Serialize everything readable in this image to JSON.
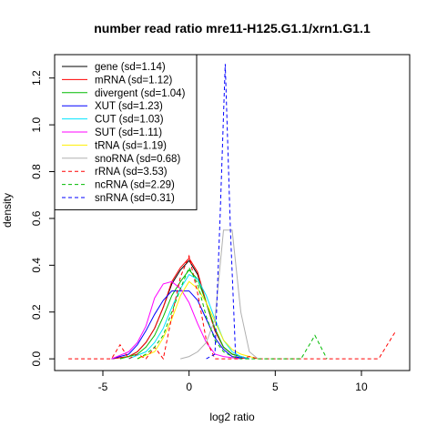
{
  "chart_data": {
    "type": "line",
    "title": "number read ratio mre11-H125.G1.1/xrn1.G1.1",
    "xlabel": "log2 ratio",
    "ylabel": "density",
    "xlim": [
      -7.8,
      12.8
    ],
    "ylim": [
      -0.05,
      1.3
    ],
    "xticks": [
      -5,
      0,
      5,
      10
    ],
    "yticks": [
      0.0,
      0.2,
      0.4,
      0.6,
      0.8,
      1.0,
      1.2
    ],
    "xtick_labels": [
      "-5",
      "0",
      "5",
      "10"
    ],
    "ytick_labels": [
      "0.0",
      "0.2",
      "0.4",
      "0.6",
      "0.8",
      "1.0",
      "1.2"
    ],
    "grid": false,
    "legend_position": "top-left",
    "series": [
      {
        "name": "gene (sd=1.14)",
        "color": "#000000",
        "dash": "solid",
        "x": [
          -4.5,
          -3.5,
          -3,
          -2.5,
          -2,
          -1.5,
          -1,
          -0.5,
          0,
          0.5,
          1,
          1.5,
          2,
          2.5,
          3,
          3.5
        ],
        "y": [
          0,
          0.01,
          0.03,
          0.07,
          0.13,
          0.22,
          0.32,
          0.38,
          0.42,
          0.36,
          0.24,
          0.12,
          0.05,
          0.02,
          0.01,
          0
        ]
      },
      {
        "name": "mRNA (sd=1.12)",
        "color": "#ff0000",
        "dash": "solid",
        "x": [
          -4.5,
          -3.5,
          -3,
          -2.5,
          -2,
          -1.5,
          -1,
          -0.5,
          0,
          0.5,
          1,
          1.5,
          2,
          2.5,
          3,
          3.5
        ],
        "y": [
          0,
          0.01,
          0.03,
          0.07,
          0.13,
          0.22,
          0.33,
          0.39,
          0.43,
          0.37,
          0.24,
          0.12,
          0.05,
          0.02,
          0.01,
          0
        ]
      },
      {
        "name": "divergent (sd=1.04)",
        "color": "#00bb00",
        "dash": "solid",
        "x": [
          -4,
          -3,
          -2.5,
          -2,
          -1.5,
          -1,
          -0.5,
          0,
          0.5,
          1,
          1.5,
          2,
          2.5,
          3,
          3.5
        ],
        "y": [
          0,
          0.02,
          0.05,
          0.1,
          0.18,
          0.27,
          0.33,
          0.38,
          0.34,
          0.24,
          0.13,
          0.05,
          0.02,
          0.01,
          0
        ]
      },
      {
        "name": "XUT (sd=1.23)",
        "color": "#0000ff",
        "dash": "solid",
        "x": [
          -4.5,
          -3.5,
          -3,
          -2.5,
          -2,
          -1.5,
          -1,
          0,
          0.5,
          1,
          1.5,
          2,
          2.5,
          3.5
        ],
        "y": [
          0,
          0.02,
          0.06,
          0.12,
          0.19,
          0.25,
          0.29,
          0.29,
          0.25,
          0.17,
          0.09,
          0.04,
          0.01,
          0
        ]
      },
      {
        "name": "CUT (sd=1.03)",
        "color": "#00e5ff",
        "dash": "solid",
        "x": [
          -3.5,
          -2.5,
          -2,
          -1.5,
          -1,
          -0.5,
          0,
          0.5,
          1,
          1.5,
          2,
          2.5,
          3,
          3.5
        ],
        "y": [
          0,
          0.03,
          0.07,
          0.13,
          0.22,
          0.3,
          0.36,
          0.34,
          0.27,
          0.17,
          0.08,
          0.03,
          0.01,
          0
        ]
      },
      {
        "name": "SUT (sd=1.11)",
        "color": "#ff00ff",
        "dash": "solid",
        "x": [
          -4.5,
          -3.5,
          -3,
          -2.5,
          -2,
          -1.5,
          -1,
          -0.5,
          0,
          0.5,
          1,
          1.5,
          2,
          3
        ],
        "y": [
          0,
          0.03,
          0.07,
          0.14,
          0.26,
          0.32,
          0.33,
          0.3,
          0.24,
          0.15,
          0.07,
          0.02,
          0.01,
          0
        ]
      },
      {
        "name": "tRNA (sd=1.19)",
        "color": "#ffee00",
        "dash": "solid",
        "x": [
          -3,
          -2,
          -1.5,
          -1,
          -0.5,
          0,
          0.5,
          1,
          1.5,
          2,
          2.5,
          3,
          4
        ],
        "y": [
          0,
          0.03,
          0.09,
          0.17,
          0.27,
          0.33,
          0.3,
          0.24,
          0.16,
          0.08,
          0.04,
          0.02,
          0
        ]
      },
      {
        "name": "snoRNA (sd=0.68)",
        "color": "#b0b0b0",
        "dash": "solid",
        "x": [
          -0.5,
          0,
          0.5,
          1,
          1.5,
          2,
          2.5,
          3,
          3.5,
          4
        ],
        "y": [
          0,
          0.01,
          0.03,
          0.07,
          0.17,
          0.55,
          0.55,
          0.2,
          0.03,
          0
        ]
      },
      {
        "name": "rRNA (sd=3.53)",
        "color": "#ff0000",
        "dash": "dashed",
        "x": [
          -7,
          -4.5,
          -4,
          -3.5,
          -3,
          -2.5,
          -2,
          -1.5,
          -1,
          -0.5,
          0,
          0.5,
          1,
          1.5,
          2,
          2.5,
          3,
          3.5,
          4,
          4.5,
          11,
          12
        ],
        "y": [
          0,
          0,
          0.06,
          0,
          0.02,
          0,
          0.05,
          0,
          0.18,
          0.35,
          0.44,
          0.28,
          0.08,
          0,
          0,
          0,
          0,
          0.01,
          0,
          0,
          0,
          0.12
        ]
      },
      {
        "name": "ncRNA (sd=2.29)",
        "color": "#00bb00",
        "dash": "dashed",
        "x": [
          -3,
          -2.5,
          -2,
          -1.5,
          -1,
          -0.5,
          0,
          0.5,
          1,
          1.5,
          2,
          2.5,
          3,
          6.5,
          7.3,
          8
        ],
        "y": [
          0,
          0.02,
          0.05,
          0.1,
          0.2,
          0.3,
          0.39,
          0.32,
          0.18,
          0.08,
          0.03,
          0.01,
          0,
          0,
          0.1,
          0
        ]
      },
      {
        "name": "snRNA (sd=0.31)",
        "color": "#0000ff",
        "dash": "dashed",
        "x": [
          1,
          1.5,
          1.8,
          2.1,
          2.4,
          2.7,
          3
        ],
        "y": [
          0,
          0.02,
          0.6,
          1.26,
          0.55,
          0.01,
          0
        ]
      }
    ]
  }
}
